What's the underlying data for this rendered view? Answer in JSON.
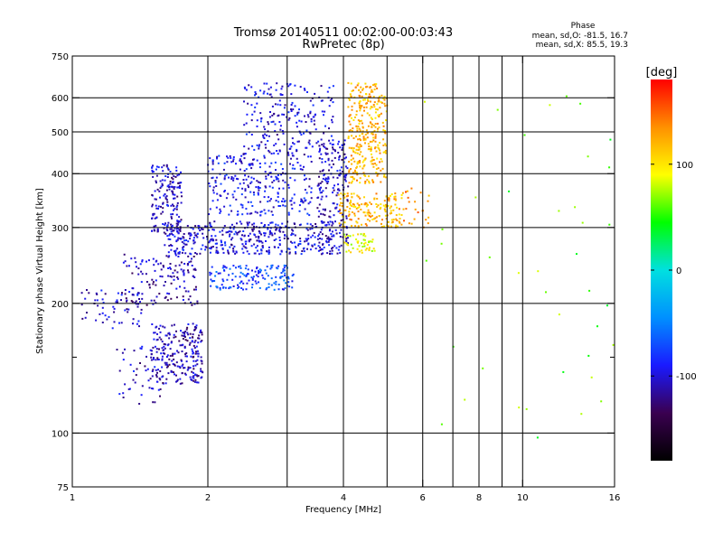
{
  "chart_data": {
    "type": "scatter",
    "title": "Tromsø 20140511 00:02:00-00:03:43",
    "subtitle": "RwPretec (8p)",
    "xlabel": "Frequency [MHz]",
    "ylabel": "Stationary phase Virtual Height [km]",
    "x_scale": "log",
    "y_scale": "log",
    "xlim": [
      1,
      16
    ],
    "ylim": [
      75,
      750
    ],
    "x_ticks": [
      1,
      2,
      4,
      6,
      8,
      10,
      16
    ],
    "x_minor_ticks": [
      3,
      5,
      7,
      9
    ],
    "y_ticks": [
      75,
      100,
      200,
      300,
      400,
      500,
      600,
      750
    ],
    "y_minor_ticks": [
      150
    ],
    "grid": true,
    "stats": {
      "heading": "Phase",
      "o_line": "mean, sd,O: -81.5, 16.7",
      "x_line": "mean, sd,X: 85.5, 19.3"
    },
    "colorbar": {
      "label": "[deg]",
      "range": [
        -180,
        180
      ],
      "ticks": [
        100,
        0,
        -100
      ],
      "colors": [
        "#000000",
        "#3a0050",
        "#1a1aff",
        "#0090ff",
        "#00e0e0",
        "#00ff00",
        "#ffff00",
        "#ff9000",
        "#ff0000"
      ]
    },
    "series": [
      {
        "x_range": [
          1.05,
          1.45
        ],
        "y_range": [
          175,
          215
        ],
        "phase": -105,
        "count": 60
      },
      {
        "x_range": [
          1.3,
          1.9
        ],
        "y_range": [
          198,
          260
        ],
        "phase": -110,
        "count": 140
      },
      {
        "x_range": [
          1.5,
          1.75
        ],
        "y_range": [
          290,
          420
        ],
        "phase": -105,
        "count": 170
      },
      {
        "x_range": [
          1.5,
          1.95
        ],
        "y_range": [
          130,
          180
        ],
        "phase": -110,
        "count": 240
      },
      {
        "x_range": [
          1.25,
          1.6
        ],
        "y_range": [
          115,
          160
        ],
        "phase": -105,
        "count": 50
      },
      {
        "x_range": [
          1.6,
          3.8
        ],
        "y_range": [
          260,
          310
        ],
        "phase": -100,
        "count": 420
      },
      {
        "x_range": [
          2.0,
          3.1
        ],
        "y_range": [
          215,
          245
        ],
        "phase": -75,
        "count": 150
      },
      {
        "x_range": [
          2.0,
          3.4
        ],
        "y_range": [
          320,
          440
        ],
        "phase": -95,
        "count": 260
      },
      {
        "x_range": [
          2.4,
          3.8
        ],
        "y_range": [
          440,
          650
        ],
        "phase": -100,
        "count": 220
      },
      {
        "x_range": [
          3.5,
          4.1
        ],
        "y_range": [
          260,
          480
        ],
        "phase": -105,
        "count": 200
      },
      {
        "x_range": [
          4.1,
          5.0
        ],
        "y_range": [
          380,
          650
        ],
        "phase": 120,
        "count": 320
      },
      {
        "x_range": [
          3.9,
          5.4
        ],
        "y_range": [
          300,
          360
        ],
        "phase": 120,
        "count": 170
      },
      {
        "x_range": [
          4.0,
          4.7
        ],
        "y_range": [
          262,
          290
        ],
        "phase": 90,
        "count": 50
      },
      {
        "x_range": [
          5.0,
          6.2
        ],
        "y_range": [
          300,
          370
        ],
        "phase": 135,
        "count": 30
      },
      {
        "x_range": [
          6.0,
          16.0
        ],
        "y_range": [
          85,
          650
        ],
        "phase": 60,
        "count": 40
      }
    ]
  }
}
